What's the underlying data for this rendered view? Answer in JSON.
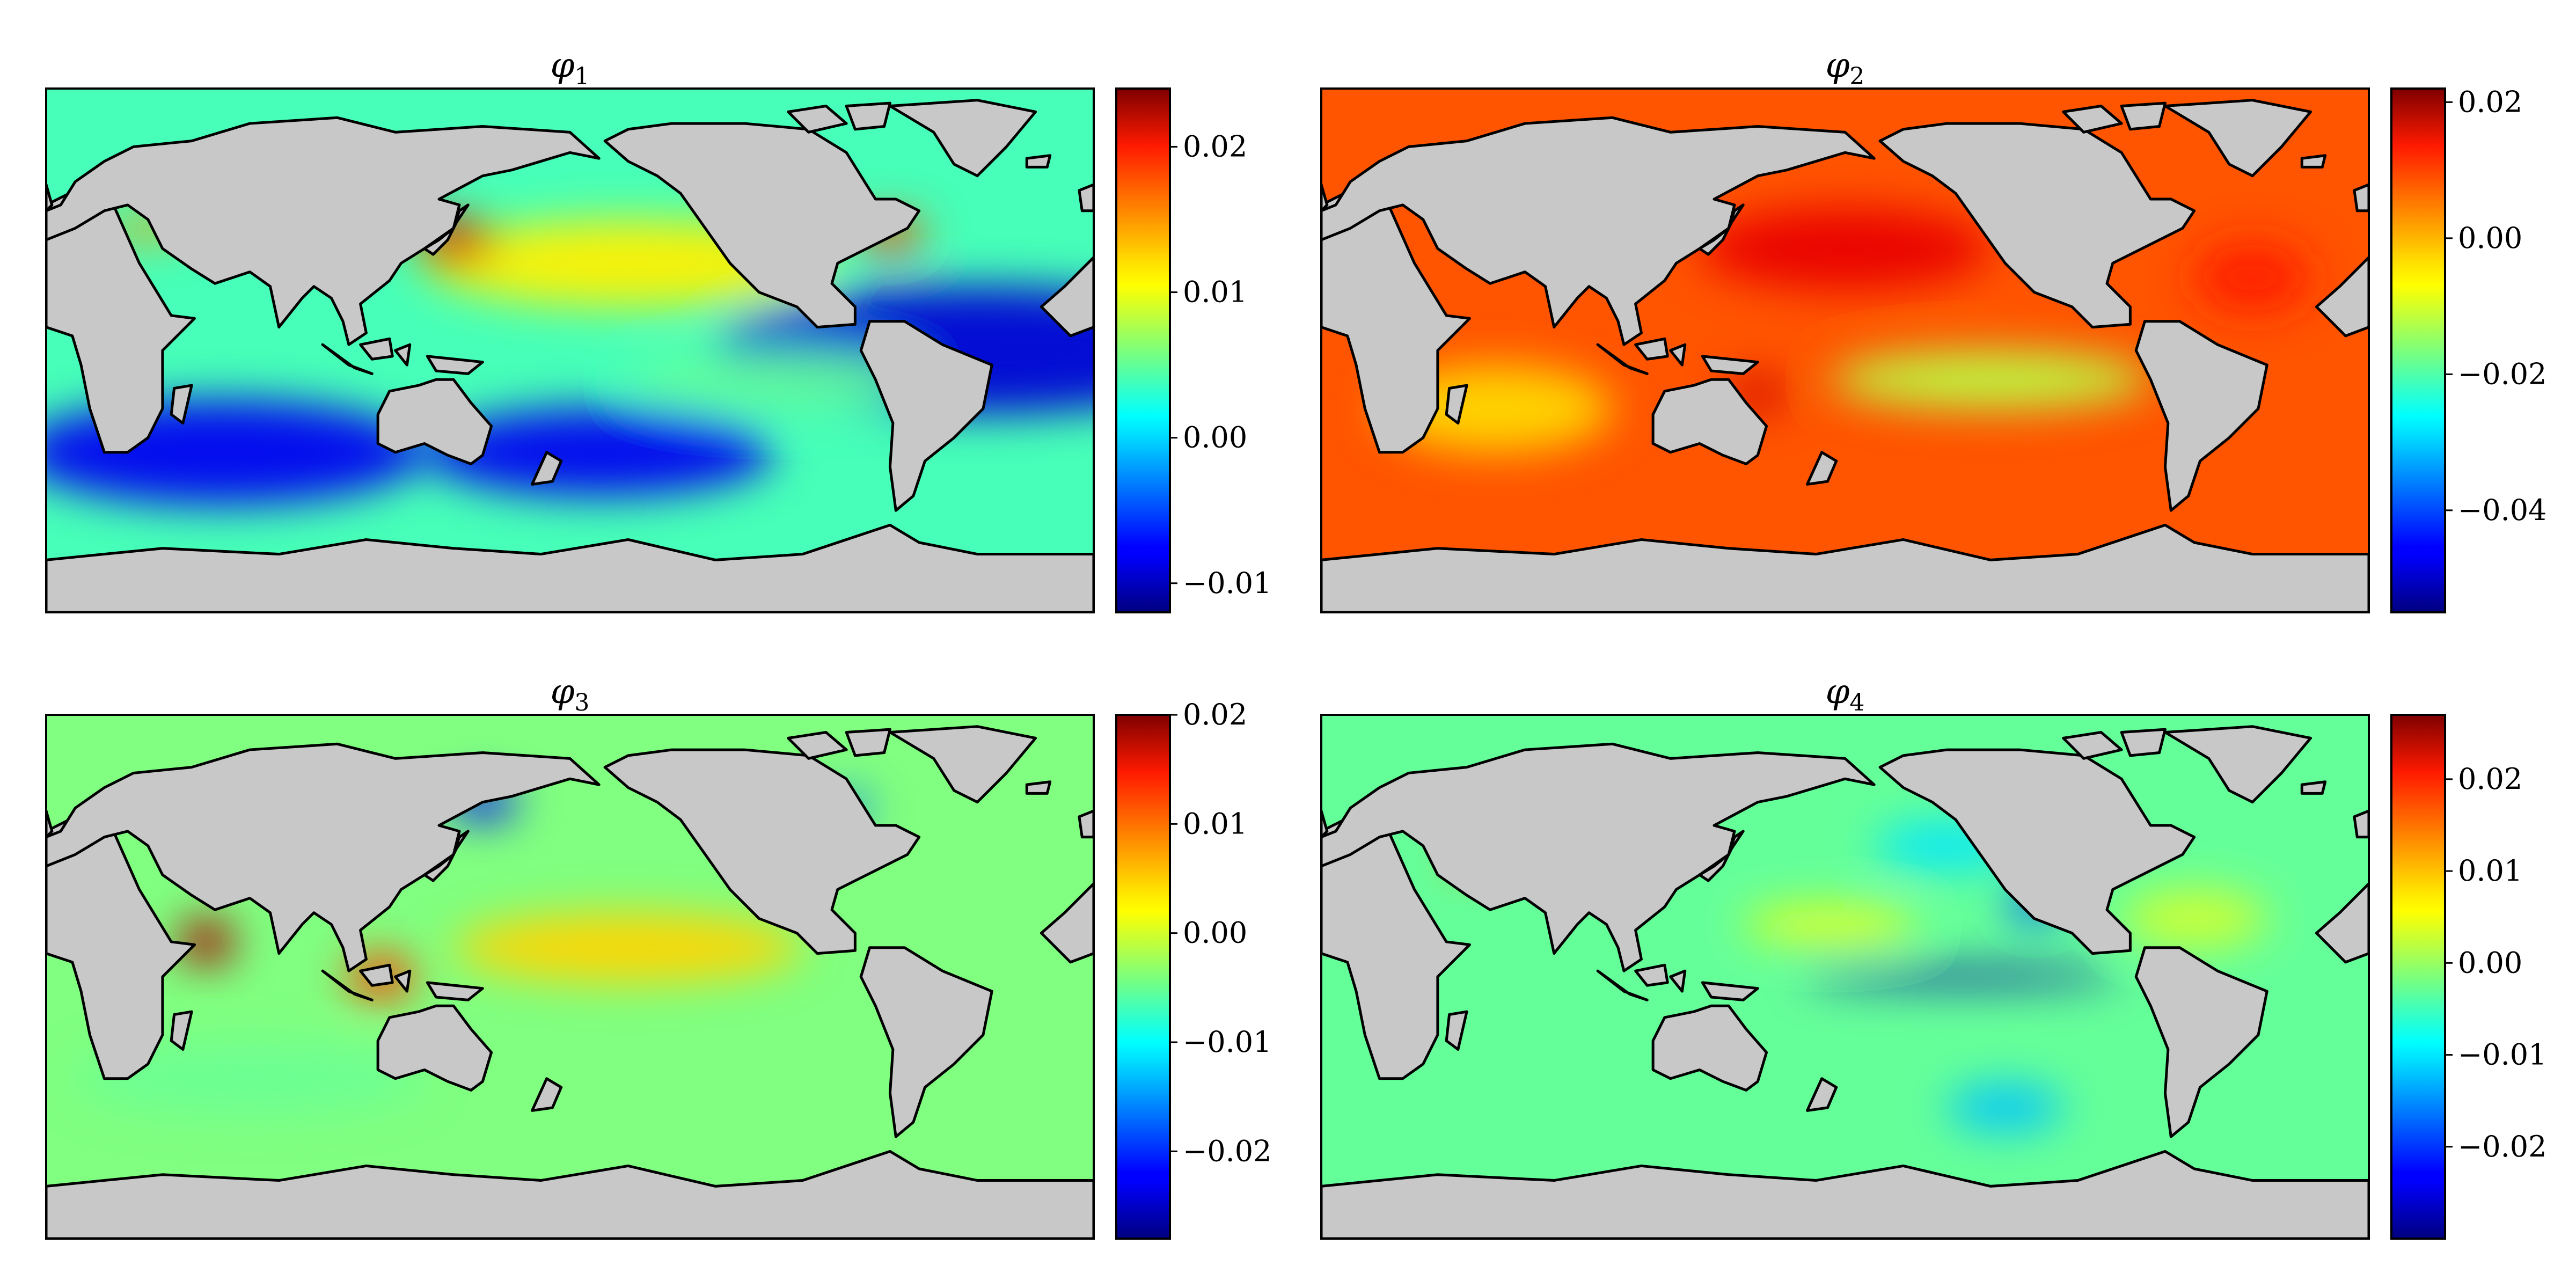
{
  "figure": {
    "panels": [
      {
        "id": "phi1",
        "title_symbol": "φ",
        "title_subscript": "1",
        "colorbar": {
          "min": -0.012,
          "max": 0.024,
          "ticks": [
            -0.01,
            0.0,
            0.01,
            0.02
          ],
          "tick_labels": [
            "−0.01",
            "0.00",
            "0.01",
            "0.02"
          ]
        },
        "pattern": [
          {
            "lon": 320,
            "lat": 0,
            "rx": 90,
            "ry": 22,
            "v": -0.009
          },
          {
            "lon": 60,
            "lat": -35,
            "rx": 70,
            "ry": 18,
            "v": -0.008
          },
          {
            "lon": 190,
            "lat": -35,
            "rx": 60,
            "ry": 15,
            "v": -0.008
          },
          {
            "lon": 200,
            "lat": 30,
            "rx": 70,
            "ry": 15,
            "v": 0.011
          },
          {
            "lon": 140,
            "lat": 38,
            "rx": 14,
            "ry": 8,
            "v": 0.021
          },
          {
            "lon": 290,
            "lat": 40,
            "rx": 12,
            "ry": 6,
            "v": 0.017
          },
          {
            "lon": 35,
            "lat": 42,
            "rx": 15,
            "ry": 4,
            "v": 0.014
          },
          {
            "lon": 250,
            "lat": -10,
            "rx": 50,
            "ry": 10,
            "v": 0.005
          }
        ]
      },
      {
        "id": "phi2",
        "title_symbol": "φ",
        "title_subscript": "2",
        "colorbar": {
          "min": -0.055,
          "max": 0.022,
          "ticks": [
            -0.04,
            -0.02,
            0.0,
            0.02
          ],
          "tick_labels": [
            "−0.04",
            "−0.02",
            "0.00",
            "0.02"
          ]
        },
        "pattern": [
          {
            "lon": 180,
            "lat": 35,
            "rx": 50,
            "ry": 14,
            "v": 0.014
          },
          {
            "lon": 230,
            "lat": -10,
            "rx": 55,
            "ry": 10,
            "v": -0.012
          },
          {
            "lon": 150,
            "lat": -15,
            "rx": 10,
            "ry": 6,
            "v": 0.016
          },
          {
            "lon": 320,
            "lat": 25,
            "rx": 20,
            "ry": 12,
            "v": 0.01
          },
          {
            "lon": 60,
            "lat": -20,
            "rx": 40,
            "ry": 15,
            "v": -0.004
          }
        ]
      },
      {
        "id": "phi3",
        "title_symbol": "φ",
        "title_subscript": "3",
        "colorbar": {
          "min": -0.028,
          "max": 0.02,
          "ticks": [
            -0.02,
            -0.01,
            0.0,
            0.01,
            0.02
          ],
          "tick_labels": [
            "−0.02",
            "−0.01",
            "0.00",
            "0.01",
            "0.02"
          ]
        },
        "pattern": [
          {
            "lon": 55,
            "lat": 12,
            "rx": 10,
            "ry": 8,
            "v": 0.018
          },
          {
            "lon": 115,
            "lat": 0,
            "rx": 12,
            "ry": 8,
            "v": 0.011
          },
          {
            "lon": 150,
            "lat": 60,
            "rx": 12,
            "ry": 6,
            "v": -0.022
          },
          {
            "lon": 275,
            "lat": 58,
            "rx": 8,
            "ry": 5,
            "v": -0.017
          },
          {
            "lon": 200,
            "lat": 10,
            "rx": 60,
            "ry": 12,
            "v": 0.004
          },
          {
            "lon": 70,
            "lat": -35,
            "rx": 60,
            "ry": 12,
            "v": -0.005
          }
        ]
      },
      {
        "id": "phi4",
        "title_symbol": "φ",
        "title_subscript": "4",
        "colorbar": {
          "min": -0.03,
          "max": 0.027,
          "ticks": [
            -0.02,
            -0.01,
            0.0,
            0.01,
            0.02
          ],
          "tick_labels": [
            "−0.02",
            "−0.01",
            "0.00",
            "0.01",
            "0.02"
          ]
        },
        "pattern": [
          {
            "lon": 220,
            "lat": 0,
            "rx": 55,
            "ry": 3,
            "v": -0.028
          },
          {
            "lon": 245,
            "lat": 25,
            "rx": 10,
            "ry": 6,
            "v": -0.018
          },
          {
            "lon": 215,
            "lat": 45,
            "rx": 25,
            "ry": 8,
            "v": -0.01
          },
          {
            "lon": 235,
            "lat": -45,
            "rx": 20,
            "ry": 8,
            "v": -0.012
          },
          {
            "lon": 175,
            "lat": 18,
            "rx": 30,
            "ry": 6,
            "v": 0.005
          },
          {
            "lon": 50,
            "lat": 40,
            "rx": 6,
            "ry": 4,
            "v": 0.012
          },
          {
            "lon": 300,
            "lat": 20,
            "rx": 25,
            "ry": 10,
            "v": 0.003
          }
        ]
      }
    ],
    "land_color": "#c8c8c8",
    "colormap": "jet",
    "projection": "PlateCarree",
    "central_longitude": 180
  }
}
